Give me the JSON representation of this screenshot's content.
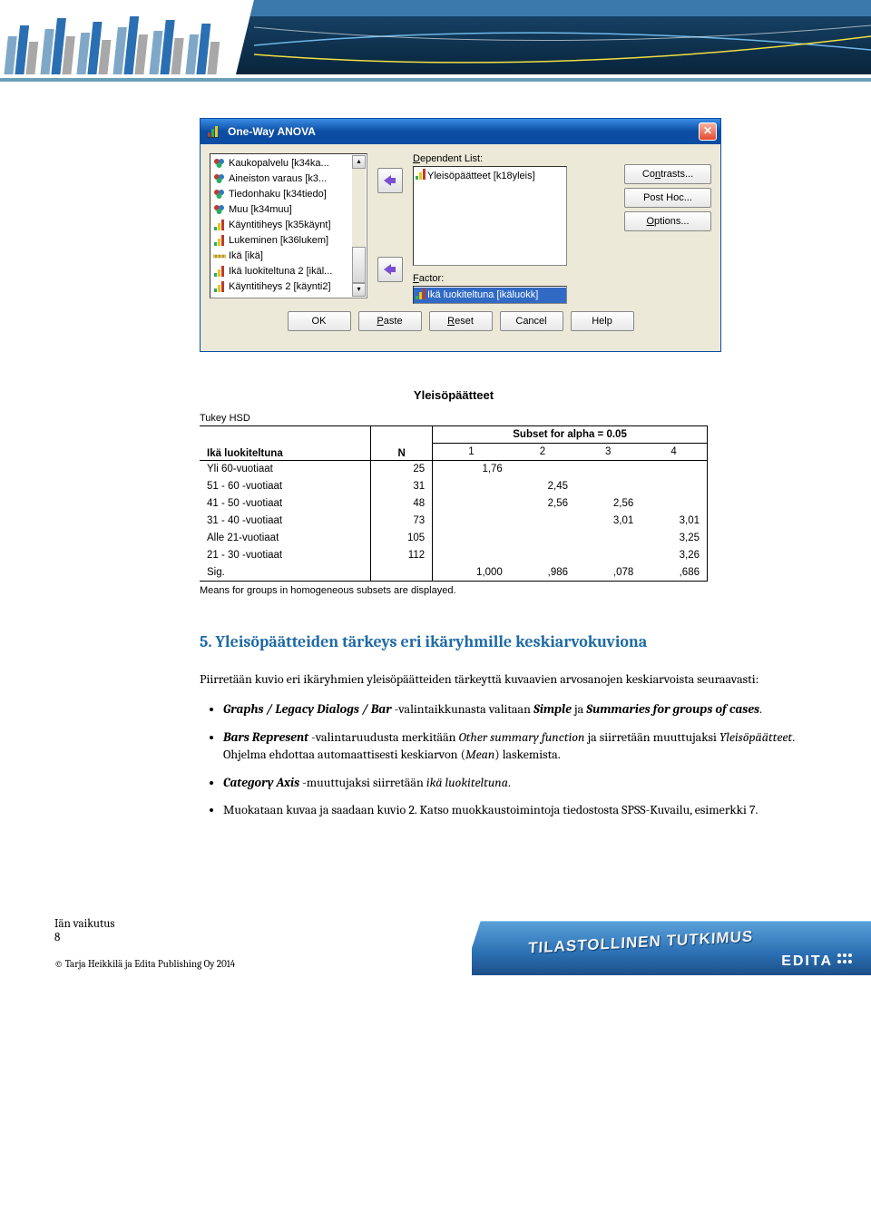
{
  "banner": {
    "bar_color1": "#7fa8c8",
    "bar_color2": "#2b6fb3",
    "bar_color3": "#c0c0c0",
    "accent_yellow": "#f0e040"
  },
  "dialog": {
    "title": "One-Way ANOVA",
    "titlebar_gradient_top": "#3a8ce6",
    "titlebar_gradient_bottom": "#0a4da2",
    "variables": [
      {
        "label": "Kaukopalvelu [k34ka...",
        "type": "nominal"
      },
      {
        "label": "Aineiston varaus [k3...",
        "type": "nominal"
      },
      {
        "label": "Tiedonhaku [k34tiedo]",
        "type": "nominal"
      },
      {
        "label": "Muu [k34muu]",
        "type": "nominal"
      },
      {
        "label": "Käyntitiheys [k35käynt]",
        "type": "ordinal"
      },
      {
        "label": "Lukeminen [k36lukem]",
        "type": "ordinal"
      },
      {
        "label": "Ikä [ikä]",
        "type": "scale"
      },
      {
        "label": "Ikä luokiteltuna 2 [ikäl...",
        "type": "ordinal"
      },
      {
        "label": "Käyntitiheys 2 [käynti2]",
        "type": "ordinal"
      }
    ],
    "dependent_label": "Dependent List:",
    "dependent_item": "Yleisöpäätteet [k18yleis]",
    "factor_label": "Factor:",
    "factor_item": "Ikä luokiteltuna [ikäluokk]",
    "selection_bg": "#316ac5",
    "buttons": {
      "contrasts": "Contrasts...",
      "contrasts_u": "n",
      "posthoc": "Post Hoc...",
      "options": "Options...",
      "options_u": "O"
    },
    "footer": {
      "ok": "OK",
      "paste": "Paste",
      "paste_u": "P",
      "reset": "Reset",
      "reset_u": "R",
      "cancel": "Cancel",
      "help": "Help"
    }
  },
  "tukey": {
    "title": "Yleisöpäätteet",
    "sub": "Tukey HSD",
    "rowheader": "Ikä luokiteltuna",
    "colN": "N",
    "subset_header": "Subset for alpha = 0.05",
    "subset_cols": [
      "1",
      "2",
      "3",
      "4"
    ],
    "rows": [
      {
        "label": "Yli 60-vuotiaat",
        "n": "25",
        "v": [
          "1,76",
          "",
          "",
          ""
        ]
      },
      {
        "label": "51 - 60 -vuotiaat",
        "n": "31",
        "v": [
          "",
          "2,45",
          "",
          ""
        ]
      },
      {
        "label": "41 - 50 -vuotiaat",
        "n": "48",
        "v": [
          "",
          "2,56",
          "2,56",
          ""
        ]
      },
      {
        "label": "31 - 40 -vuotiaat",
        "n": "73",
        "v": [
          "",
          "",
          "3,01",
          "3,01"
        ]
      },
      {
        "label": "Alle 21-vuotiaat",
        "n": "105",
        "v": [
          "",
          "",
          "",
          "3,25"
        ]
      },
      {
        "label": "21 - 30 -vuotiaat",
        "n": "112",
        "v": [
          "",
          "",
          "",
          "3,26"
        ]
      }
    ],
    "sig_label": "Sig.",
    "sig": [
      "1,000",
      ",986",
      ",078",
      ",686"
    ],
    "footnote": "Means for groups in homogeneous subsets are displayed."
  },
  "article": {
    "heading": "5. Yleisöpäätteiden tärkeys eri ikäryhmille keskiarvokuviona",
    "intro": "Piirretään kuvio eri ikäryhmien yleisöpäätteiden tärkeyttä kuvaavien arvosanojen keskiarvoista seuraavasti:",
    "b1_pre": "Graphs / Legacy Dialogs / Bar",
    "b1_mid": " -valintaikkunasta valitaan ",
    "b1_simple": "Simple",
    "b1_and": " ja ",
    "b1_sum": "Summaries for groups of cases",
    "b1_end": ".",
    "b2_pre": "Bars Represent",
    "b2_mid": " -valintaruudusta merkitään ",
    "b2_other": "Other summary function",
    "b2_mid2": " ja siirretään muuttujaksi ",
    "b2_var": "Yleisöpäätteet",
    "b2_mid3": ". Ohjelma ehdottaa automaattisesti keskiarvon (",
    "b2_mean": "Mean",
    "b2_end": ") laskemista.",
    "b3_pre": "Category Axis",
    "b3_mid": " -muuttujaksi siirretään ",
    "b3_var": "ikä luokiteltuna",
    "b3_end": ".",
    "b4": "Muokataan kuvaa ja saadaan kuvio 2. Katso muokkaustoimintoja tiedostosta SPSS-Kuvailu, esimerkki 7."
  },
  "footer": {
    "left1": "Iän vaikutus",
    "left2": "8",
    "copyright": "© Tarja Heikkilä ja Edita Publishing Oy 2014",
    "banner_text": "TILASTOLLINEN TUTKIMUS",
    "edita": "EDITA",
    "banner_bg_top": "#5aa0d8",
    "banner_bg_bottom": "#1c4f86"
  }
}
